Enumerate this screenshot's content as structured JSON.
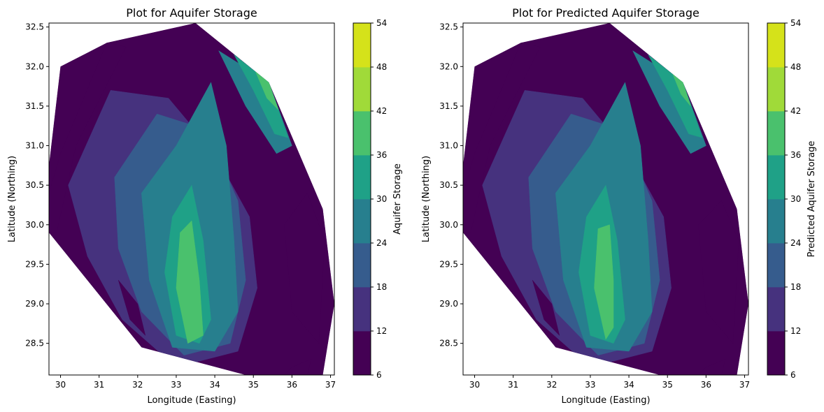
{
  "chart_data": [
    {
      "type": "contour",
      "title": "Plot for Aquifer Storage",
      "xlabel": "Longitude (Easting)",
      "ylabel": "Latitude (Northing)",
      "xlim": [
        29.7,
        37.1
      ],
      "ylim": [
        28.1,
        32.55
      ],
      "xticks": [
        30,
        31,
        32,
        33,
        34,
        35,
        36,
        37
      ],
      "yticks": [
        28.5,
        29.0,
        29.5,
        30.0,
        30.5,
        31.0,
        31.5,
        32.0,
        32.5
      ],
      "colorbar": {
        "label": "Aquifer Storage",
        "ticks": [
          6,
          12,
          18,
          24,
          30,
          36,
          42,
          48,
          54
        ]
      },
      "levels": [
        6,
        12,
        18,
        24,
        30,
        36,
        42,
        48,
        54
      ],
      "colormap": [
        "#440154",
        "#46327e",
        "#365c8d",
        "#277f8e",
        "#1fa187",
        "#4ac16d",
        "#a0da39",
        "#d5e21a"
      ],
      "hull": [
        [
          29.7,
          29.9
        ],
        [
          29.7,
          30.75
        ],
        [
          30.0,
          32.0
        ],
        [
          31.2,
          32.3
        ],
        [
          33.5,
          32.55
        ],
        [
          35.4,
          31.8
        ],
        [
          36.8,
          30.2
        ],
        [
          37.1,
          29.0
        ],
        [
          36.8,
          28.1
        ],
        [
          34.8,
          28.1
        ],
        [
          32.1,
          28.45
        ]
      ],
      "zones": [
        {
          "level": 12,
          "polygon": [
            [
              29.7,
              29.9
            ],
            [
              29.7,
              30.75
            ],
            [
              30.0,
              32.0
            ],
            [
              31.2,
              32.3
            ],
            [
              33.5,
              32.55
            ],
            [
              35.4,
              31.8
            ],
            [
              36.8,
              30.2
            ],
            [
              37.1,
              29.0
            ],
            [
              36.8,
              28.1
            ],
            [
              34.8,
              28.1
            ],
            [
              32.1,
              28.45
            ]
          ]
        },
        {
          "level": 18,
          "polygon": [
            [
              30.2,
              30.5
            ],
            [
              31.3,
              31.7
            ],
            [
              32.8,
              31.6
            ],
            [
              34.0,
              30.9
            ],
            [
              34.9,
              30.1
            ],
            [
              35.1,
              29.2
            ],
            [
              34.6,
              28.4
            ],
            [
              33.0,
              28.2
            ],
            [
              31.6,
              28.8
            ],
            [
              30.7,
              29.6
            ]
          ]
        },
        {
          "level": 24,
          "polygon": [
            [
              31.4,
              30.6
            ],
            [
              32.5,
              31.4
            ],
            [
              33.8,
              31.2
            ],
            [
              34.6,
              30.3
            ],
            [
              34.8,
              29.3
            ],
            [
              34.4,
              28.5
            ],
            [
              33.2,
              28.35
            ],
            [
              32.1,
              28.9
            ],
            [
              31.5,
              29.7
            ]
          ]
        },
        {
          "level": 30,
          "polygon": [
            [
              32.1,
              30.4
            ],
            [
              33.0,
              31.0
            ],
            [
              33.9,
              31.8
            ],
            [
              34.3,
              31.0
            ],
            [
              34.5,
              29.8
            ],
            [
              34.6,
              28.9
            ],
            [
              34.0,
              28.4
            ],
            [
              32.9,
              28.45
            ],
            [
              32.3,
              29.3
            ]
          ]
        },
        {
          "level": 36,
          "polygon": [
            [
              32.9,
              30.1
            ],
            [
              33.4,
              30.5
            ],
            [
              33.7,
              29.8
            ],
            [
              33.9,
              28.8
            ],
            [
              33.6,
              28.5
            ],
            [
              33.0,
              28.6
            ],
            [
              32.7,
              29.4
            ]
          ]
        },
        {
          "level": 42,
          "polygon": [
            [
              33.1,
              29.9
            ],
            [
              33.4,
              30.05
            ],
            [
              33.6,
              29.3
            ],
            [
              33.7,
              28.6
            ],
            [
              33.3,
              28.5
            ],
            [
              33.0,
              29.2
            ]
          ]
        },
        {
          "level": 30,
          "polygon": [
            [
              34.1,
              32.2
            ],
            [
              35.4,
              31.8
            ],
            [
              36.0,
              31.0
            ],
            [
              35.6,
              30.9
            ],
            [
              34.8,
              31.5
            ]
          ]
        },
        {
          "level": 36,
          "polygon": [
            [
              34.5,
              32.15
            ],
            [
              35.4,
              31.8
            ],
            [
              35.9,
              31.1
            ],
            [
              35.55,
              31.15
            ],
            [
              35.0,
              31.7
            ]
          ]
        },
        {
          "level": 42,
          "polygon": [
            [
              35.0,
              32.0
            ],
            [
              35.4,
              31.8
            ],
            [
              35.65,
              31.45
            ],
            [
              35.35,
              31.6
            ]
          ]
        },
        {
          "level": 6,
          "polygon": [
            [
              30.0,
              30.9
            ],
            [
              31.2,
              32.3
            ],
            [
              31.7,
              32.25
            ],
            [
              30.4,
              31.0
            ],
            [
              29.9,
              29.9
            ],
            [
              29.7,
              29.9
            ],
            [
              29.7,
              30.4
            ]
          ]
        },
        {
          "level": 6,
          "polygon": [
            [
              35.8,
              30.0
            ],
            [
              36.4,
              30.4
            ],
            [
              36.85,
              29.8
            ],
            [
              36.7,
              28.5
            ],
            [
              36.0,
              28.9
            ]
          ]
        },
        {
          "level": 6,
          "polygon": [
            [
              31.5,
              29.3
            ],
            [
              32.0,
              29.0
            ],
            [
              32.2,
              28.6
            ],
            [
              31.8,
              28.8
            ]
          ]
        },
        {
          "level": 6,
          "polygon": [
            [
              36.0,
              28.2
            ],
            [
              36.5,
              28.3
            ],
            [
              36.4,
              28.1
            ],
            [
              35.8,
              28.1
            ]
          ]
        }
      ]
    },
    {
      "type": "contour",
      "title": "Plot for Predicted Aquifer Storage",
      "xlabel": "Longitude (Easting)",
      "ylabel": "Latitude (Northing)",
      "xlim": [
        29.7,
        37.1
      ],
      "ylim": [
        28.1,
        32.55
      ],
      "xticks": [
        30,
        31,
        32,
        33,
        34,
        35,
        36,
        37
      ],
      "yticks": [
        28.5,
        29.0,
        29.5,
        30.0,
        30.5,
        31.0,
        31.5,
        32.0,
        32.5
      ],
      "colorbar": {
        "label": "Predicted Aquifer Storage",
        "ticks": [
          6,
          12,
          18,
          24,
          30,
          36,
          42,
          48,
          54
        ]
      },
      "levels": [
        6,
        12,
        18,
        24,
        30,
        36,
        42,
        48,
        54
      ],
      "colormap": [
        "#440154",
        "#46327e",
        "#365c8d",
        "#277f8e",
        "#1fa187",
        "#4ac16d",
        "#a0da39",
        "#d5e21a"
      ],
      "hull": [
        [
          29.7,
          29.9
        ],
        [
          29.7,
          30.75
        ],
        [
          30.0,
          32.0
        ],
        [
          31.2,
          32.3
        ],
        [
          33.5,
          32.55
        ],
        [
          35.4,
          31.8
        ],
        [
          36.8,
          30.2
        ],
        [
          37.1,
          29.0
        ],
        [
          36.8,
          28.1
        ],
        [
          34.8,
          28.1
        ],
        [
          32.1,
          28.45
        ]
      ],
      "zones": [
        {
          "level": 12,
          "polygon": [
            [
              29.7,
              29.9
            ],
            [
              29.7,
              30.75
            ],
            [
              30.0,
              32.0
            ],
            [
              31.2,
              32.3
            ],
            [
              33.5,
              32.55
            ],
            [
              35.4,
              31.8
            ],
            [
              36.8,
              30.2
            ],
            [
              37.1,
              29.0
            ],
            [
              36.8,
              28.1
            ],
            [
              34.8,
              28.1
            ],
            [
              32.1,
              28.45
            ]
          ]
        },
        {
          "level": 18,
          "polygon": [
            [
              30.2,
              30.5
            ],
            [
              31.3,
              31.7
            ],
            [
              32.8,
              31.6
            ],
            [
              34.0,
              30.9
            ],
            [
              34.9,
              30.1
            ],
            [
              35.1,
              29.2
            ],
            [
              34.6,
              28.4
            ],
            [
              33.0,
              28.2
            ],
            [
              31.6,
              28.8
            ],
            [
              30.7,
              29.6
            ]
          ]
        },
        {
          "level": 24,
          "polygon": [
            [
              31.4,
              30.6
            ],
            [
              32.5,
              31.4
            ],
            [
              33.8,
              31.2
            ],
            [
              34.6,
              30.3
            ],
            [
              34.8,
              29.3
            ],
            [
              34.4,
              28.5
            ],
            [
              33.2,
              28.35
            ],
            [
              32.1,
              28.9
            ],
            [
              31.5,
              29.7
            ]
          ]
        },
        {
          "level": 30,
          "polygon": [
            [
              32.1,
              30.4
            ],
            [
              33.0,
              31.0
            ],
            [
              33.9,
              31.8
            ],
            [
              34.3,
              31.0
            ],
            [
              34.5,
              29.8
            ],
            [
              34.6,
              28.9
            ],
            [
              34.0,
              28.4
            ],
            [
              32.9,
              28.45
            ],
            [
              32.3,
              29.3
            ]
          ]
        },
        {
          "level": 36,
          "polygon": [
            [
              32.9,
              30.1
            ],
            [
              33.4,
              30.5
            ],
            [
              33.7,
              29.8
            ],
            [
              33.9,
              28.8
            ],
            [
              33.6,
              28.5
            ],
            [
              33.0,
              28.6
            ],
            [
              32.7,
              29.4
            ]
          ]
        },
        {
          "level": 42,
          "polygon": [
            [
              33.2,
              29.95
            ],
            [
              33.5,
              30.0
            ],
            [
              33.6,
              29.3
            ],
            [
              33.6,
              28.7
            ],
            [
              33.4,
              28.55
            ],
            [
              33.1,
              29.2
            ]
          ]
        },
        {
          "level": 30,
          "polygon": [
            [
              34.1,
              32.2
            ],
            [
              35.4,
              31.8
            ],
            [
              36.0,
              31.0
            ],
            [
              35.6,
              30.9
            ],
            [
              34.8,
              31.5
            ]
          ]
        },
        {
          "level": 36,
          "polygon": [
            [
              34.5,
              32.15
            ],
            [
              35.4,
              31.8
            ],
            [
              35.9,
              31.1
            ],
            [
              35.55,
              31.15
            ],
            [
              35.0,
              31.7
            ]
          ]
        },
        {
          "level": 42,
          "polygon": [
            [
              35.1,
              31.95
            ],
            [
              35.4,
              31.8
            ],
            [
              35.6,
              31.5
            ],
            [
              35.35,
              31.65
            ]
          ]
        },
        {
          "level": 6,
          "polygon": [
            [
              30.0,
              30.9
            ],
            [
              31.2,
              32.3
            ],
            [
              31.7,
              32.25
            ],
            [
              30.4,
              31.0
            ],
            [
              29.9,
              29.9
            ],
            [
              29.7,
              29.9
            ],
            [
              29.7,
              30.4
            ]
          ]
        },
        {
          "level": 6,
          "polygon": [
            [
              35.8,
              30.0
            ],
            [
              36.4,
              30.3
            ],
            [
              36.85,
              29.8
            ],
            [
              36.7,
              28.5
            ],
            [
              36.0,
              28.9
            ]
          ]
        },
        {
          "level": 6,
          "polygon": [
            [
              31.5,
              29.3
            ],
            [
              32.0,
              29.0
            ],
            [
              32.2,
              28.6
            ],
            [
              31.8,
              28.8
            ]
          ]
        },
        {
          "level": 6,
          "polygon": [
            [
              36.0,
              28.2
            ],
            [
              36.5,
              28.3
            ],
            [
              36.4,
              28.1
            ],
            [
              35.8,
              28.1
            ]
          ]
        }
      ]
    }
  ]
}
